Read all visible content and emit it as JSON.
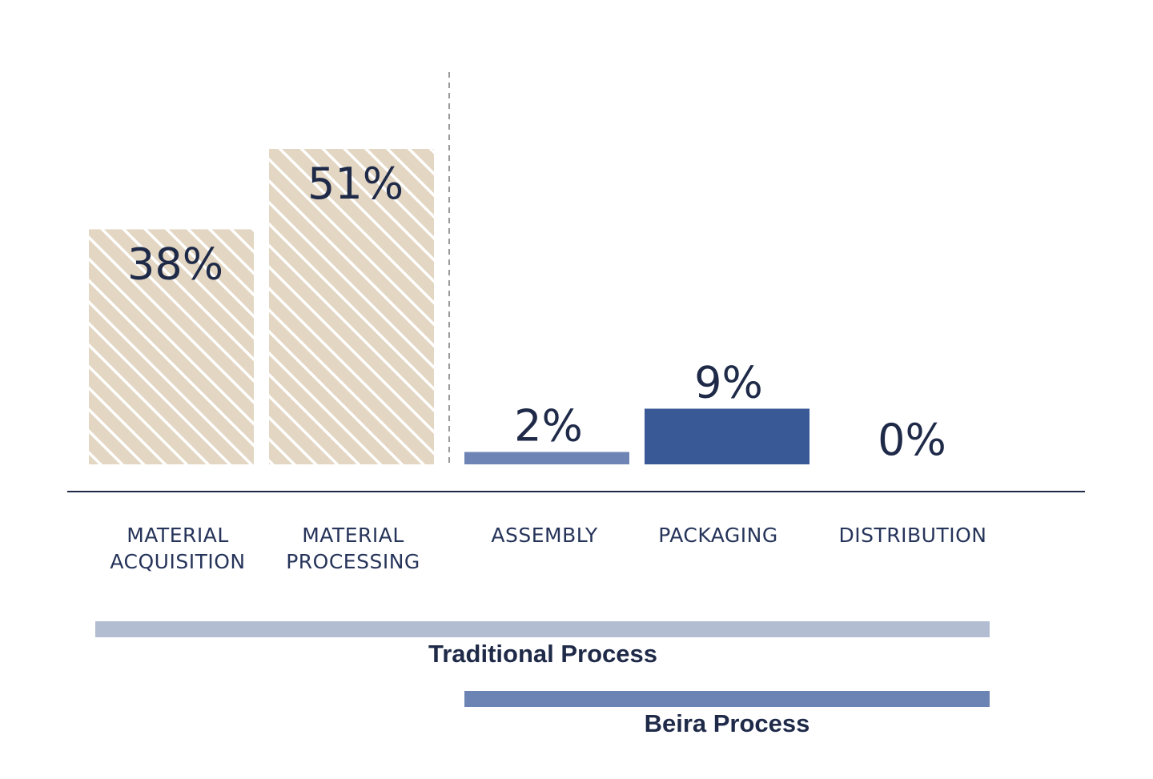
{
  "chart_data": {
    "type": "bar",
    "categories": [
      [
        "MATERIAL",
        "ACQUISITION"
      ],
      [
        "MATERIAL",
        "PROCESSING"
      ],
      [
        "ASSEMBLY"
      ],
      [
        "PACKAGING"
      ],
      [
        "DISTRIBUTION"
      ]
    ],
    "values": [
      38,
      51,
      2,
      9,
      0
    ],
    "value_labels": [
      "38%",
      "51%",
      "2%",
      "9%",
      "0%"
    ],
    "ylim": [
      0,
      51
    ],
    "grid": false,
    "bar_styles": [
      "hatched",
      "hatched",
      "solid-light",
      "solid-dark",
      "none"
    ],
    "colors": {
      "hatch_fill": "#e3d6c2",
      "hatch_stripe": "#ffffff",
      "assembly_bar": "#6d84b4",
      "packaging_bar": "#395896",
      "axis": "#1e2a48",
      "divider": "#9a9a9a",
      "text": "#1e2a48"
    },
    "processes": [
      {
        "label": "Traditional Process",
        "from_category": 0,
        "to_category": 4,
        "color": "#b3bdd2"
      },
      {
        "label": "Beira Process",
        "from_category": 2,
        "to_category": 4,
        "color": "#6c84b4"
      }
    ]
  }
}
